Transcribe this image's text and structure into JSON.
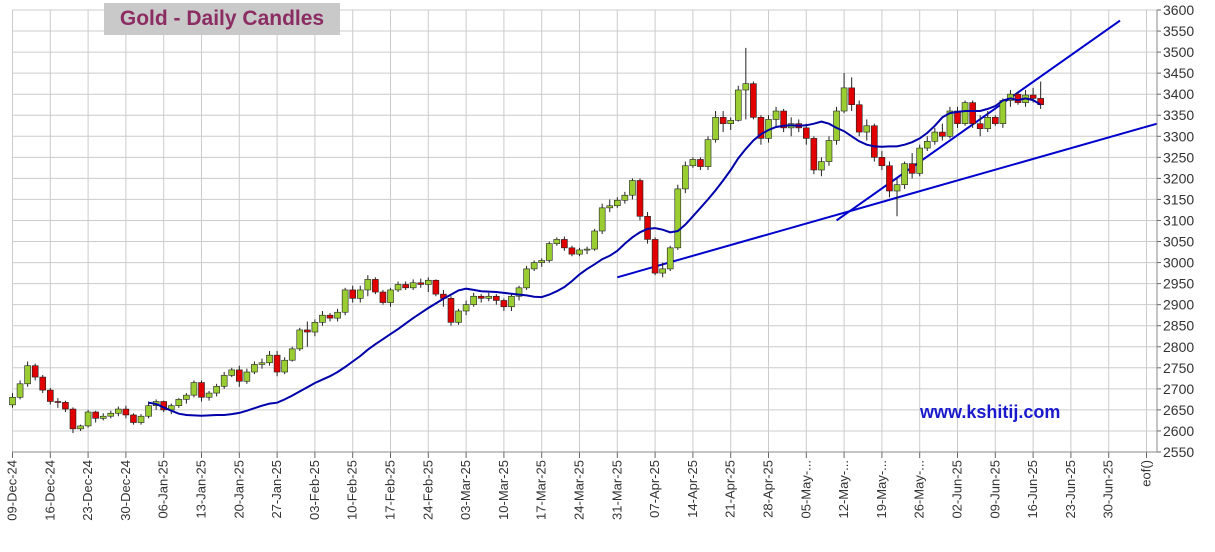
{
  "chart_data": {
    "type": "candlestick",
    "title": "Gold - Daily Candles",
    "watermark": "www.kshitij.com",
    "y_axis": {
      "position": "right",
      "range": [
        2550,
        3600
      ],
      "ticks": [
        2550,
        2600,
        2650,
        2700,
        2750,
        2800,
        2850,
        2900,
        2950,
        3000,
        3050,
        3100,
        3150,
        3200,
        3250,
        3300,
        3350,
        3400,
        3450,
        3500,
        3550,
        3600
      ]
    },
    "x_axis": {
      "tick_labels": [
        "09-Dec-24",
        "16-Dec-24",
        "23-Dec-24",
        "30-Dec-24",
        "06-Jan-25",
        "13-Jan-25",
        "20-Jan-25",
        "27-Jan-25",
        "03-Feb-25",
        "10-Feb-25",
        "17-Feb-25",
        "24-Feb-25",
        "03-Mar-25",
        "10-Mar-25",
        "17-Mar-25",
        "24-Mar-25",
        "31-Mar-25",
        "07-Apr-25",
        "14-Apr-25",
        "21-Apr-25",
        "28-Apr-25",
        "05-May-...",
        "12-May-...",
        "19-May-...",
        "26-May-...",
        "02-Jun-25",
        "09-Jun-25",
        "16-Jun-25",
        "23-Jun-25",
        "30-Jun-25",
        "eof()"
      ]
    },
    "colors": {
      "up_candle": "#9acd32",
      "down_candle": "#e00000",
      "moving_average": "#0000aa",
      "trendline": "#0000cc",
      "grid": "#cccccc"
    },
    "grid": true,
    "series": [
      {
        "type": "candlestick",
        "days_per_week": 5,
        "candles": [
          [
            2662,
            2690,
            2655,
            2680
          ],
          [
            2680,
            2720,
            2675,
            2712
          ],
          [
            2712,
            2765,
            2705,
            2755
          ],
          [
            2755,
            2760,
            2720,
            2728
          ],
          [
            2728,
            2733,
            2690,
            2697
          ],
          [
            2697,
            2702,
            2663,
            2670
          ],
          [
            2670,
            2678,
            2655,
            2668
          ],
          [
            2668,
            2672,
            2645,
            2652
          ],
          [
            2652,
            2656,
            2595,
            2605
          ],
          [
            2605,
            2615,
            2600,
            2612
          ],
          [
            2612,
            2650,
            2608,
            2645
          ],
          [
            2645,
            2648,
            2620,
            2630
          ],
          [
            2630,
            2642,
            2625,
            2635
          ],
          [
            2635,
            2648,
            2630,
            2642
          ],
          [
            2642,
            2658,
            2635,
            2652
          ],
          [
            2652,
            2660,
            2630,
            2638
          ],
          [
            2638,
            2642,
            2615,
            2620
          ],
          [
            2620,
            2640,
            2615,
            2635
          ],
          [
            2635,
            2670,
            2630,
            2660
          ],
          [
            2660,
            2675,
            2650,
            2670
          ],
          [
            2670,
            2672,
            2645,
            2650
          ],
          [
            2650,
            2665,
            2640,
            2660
          ],
          [
            2660,
            2678,
            2655,
            2675
          ],
          [
            2675,
            2690,
            2665,
            2685
          ],
          [
            2685,
            2720,
            2680,
            2715
          ],
          [
            2715,
            2720,
            2670,
            2680
          ],
          [
            2680,
            2695,
            2672,
            2690
          ],
          [
            2690,
            2712,
            2682,
            2706
          ],
          [
            2706,
            2740,
            2700,
            2732
          ],
          [
            2732,
            2750,
            2728,
            2745
          ],
          [
            2745,
            2755,
            2705,
            2718
          ],
          [
            2718,
            2748,
            2712,
            2740
          ],
          [
            2740,
            2765,
            2735,
            2758
          ],
          [
            2758,
            2772,
            2748,
            2762
          ],
          [
            2762,
            2790,
            2755,
            2780
          ],
          [
            2780,
            2790,
            2730,
            2740
          ],
          [
            2740,
            2775,
            2735,
            2768
          ],
          [
            2768,
            2800,
            2765,
            2795
          ],
          [
            2795,
            2845,
            2790,
            2840
          ],
          [
            2840,
            2860,
            2800,
            2835
          ],
          [
            2835,
            2865,
            2825,
            2858
          ],
          [
            2858,
            2885,
            2850,
            2875
          ],
          [
            2875,
            2880,
            2860,
            2868
          ],
          [
            2868,
            2890,
            2860,
            2882
          ],
          [
            2882,
            2940,
            2875,
            2935
          ],
          [
            2935,
            2945,
            2905,
            2915
          ],
          [
            2915,
            2945,
            2905,
            2935
          ],
          [
            2935,
            2970,
            2920,
            2960
          ],
          [
            2960,
            2965,
            2925,
            2930
          ],
          [
            2930,
            2935,
            2900,
            2905
          ],
          [
            2905,
            2940,
            2895,
            2935
          ],
          [
            2935,
            2955,
            2930,
            2948
          ],
          [
            2948,
            2955,
            2935,
            2940
          ],
          [
            2940,
            2960,
            2935,
            2952
          ],
          [
            2952,
            2962,
            2940,
            2948
          ],
          [
            2948,
            2965,
            2930,
            2958
          ],
          [
            2958,
            2960,
            2920,
            2925
          ],
          [
            2925,
            2935,
            2895,
            2915
          ],
          [
            2915,
            2920,
            2850,
            2858
          ],
          [
            2858,
            2890,
            2852,
            2885
          ],
          [
            2885,
            2910,
            2875,
            2900
          ],
          [
            2900,
            2928,
            2895,
            2920
          ],
          [
            2920,
            2925,
            2905,
            2915
          ],
          [
            2915,
            2928,
            2908,
            2920
          ],
          [
            2920,
            2925,
            2900,
            2910
          ],
          [
            2910,
            2915,
            2885,
            2895
          ],
          [
            2895,
            2925,
            2885,
            2920
          ],
          [
            2920,
            2945,
            2910,
            2940
          ],
          [
            2940,
            2992,
            2935,
            2985
          ],
          [
            2985,
            3005,
            2980,
            3000
          ],
          [
            3000,
            3010,
            2990,
            3005
          ],
          [
            3005,
            3050,
            3000,
            3045
          ],
          [
            3045,
            3060,
            3040,
            3055
          ],
          [
            3055,
            3062,
            3028,
            3035
          ],
          [
            3035,
            3040,
            3015,
            3020
          ],
          [
            3020,
            3035,
            3015,
            3030
          ],
          [
            3030,
            3038,
            3020,
            3032
          ],
          [
            3032,
            3080,
            3028,
            3075
          ],
          [
            3075,
            3140,
            3068,
            3130
          ],
          [
            3130,
            3150,
            3120,
            3135
          ],
          [
            3135,
            3155,
            3130,
            3148
          ],
          [
            3148,
            3168,
            3140,
            3160
          ],
          [
            3160,
            3200,
            3150,
            3195
          ],
          [
            3195,
            3200,
            3100,
            3110
          ],
          [
            3110,
            3120,
            3045,
            3055
          ],
          [
            3055,
            3060,
            2970,
            2975
          ],
          [
            2975,
            3000,
            2965,
            2985
          ],
          [
            2985,
            3040,
            2980,
            3035
          ],
          [
            3035,
            3185,
            3030,
            3175
          ],
          [
            3175,
            3240,
            3165,
            3230
          ],
          [
            3230,
            3250,
            3225,
            3245
          ],
          [
            3245,
            3250,
            3220,
            3228
          ],
          [
            3228,
            3300,
            3220,
            3292
          ],
          [
            3292,
            3360,
            3285,
            3345
          ],
          [
            3345,
            3360,
            3310,
            3330
          ],
          [
            3330,
            3345,
            3315,
            3338
          ],
          [
            3338,
            3420,
            3335,
            3410
          ],
          [
            3410,
            3510,
            3340,
            3425
          ],
          [
            3425,
            3430,
            3340,
            3345
          ],
          [
            3345,
            3350,
            3280,
            3295
          ],
          [
            3295,
            3350,
            3285,
            3340
          ],
          [
            3340,
            3370,
            3320,
            3360
          ],
          [
            3360,
            3365,
            3310,
            3320
          ],
          [
            3320,
            3345,
            3300,
            3330
          ],
          [
            3330,
            3340,
            3310,
            3320
          ],
          [
            3320,
            3330,
            3280,
            3295
          ],
          [
            3295,
            3300,
            3210,
            3220
          ],
          [
            3220,
            3250,
            3205,
            3240
          ],
          [
            3240,
            3300,
            3230,
            3290
          ],
          [
            3290,
            3370,
            3280,
            3360
          ],
          [
            3360,
            3450,
            3355,
            3415
          ],
          [
            3415,
            3440,
            3360,
            3375
          ],
          [
            3375,
            3385,
            3300,
            3310
          ],
          [
            3310,
            3340,
            3290,
            3325
          ],
          [
            3325,
            3330,
            3240,
            3250
          ],
          [
            3250,
            3265,
            3220,
            3230
          ],
          [
            3230,
            3240,
            3155,
            3170
          ],
          [
            3170,
            3200,
            3110,
            3185
          ],
          [
            3185,
            3240,
            3175,
            3235
          ],
          [
            3235,
            3260,
            3200,
            3212
          ],
          [
            3212,
            3280,
            3205,
            3272
          ],
          [
            3272,
            3300,
            3265,
            3288
          ],
          [
            3288,
            3320,
            3280,
            3310
          ],
          [
            3310,
            3330,
            3290,
            3300
          ],
          [
            3300,
            3370,
            3295,
            3360
          ],
          [
            3360,
            3370,
            3320,
            3330
          ],
          [
            3330,
            3385,
            3325,
            3380
          ],
          [
            3380,
            3385,
            3320,
            3330
          ],
          [
            3330,
            3350,
            3300,
            3318
          ],
          [
            3318,
            3360,
            3310,
            3345
          ],
          [
            3345,
            3350,
            3325,
            3330
          ],
          [
            3330,
            3390,
            3320,
            3385
          ],
          [
            3385,
            3410,
            3370,
            3400
          ],
          [
            3400,
            3405,
            3375,
            3380
          ],
          [
            3380,
            3410,
            3370,
            3398
          ],
          [
            3398,
            3415,
            3380,
            3390
          ],
          [
            3390,
            3430,
            3365,
            3375
          ]
        ]
      },
      {
        "name": "",
        "type": "line",
        "role": "moving_average",
        "values": [
          2667,
          2664,
          2656,
          2648,
          2641,
          2638,
          2637,
          2636,
          2637,
          2638,
          2638,
          2640,
          2643,
          2648,
          2654,
          2660,
          2665,
          2667,
          2675,
          2684,
          2694,
          2704,
          2714,
          2722,
          2730,
          2740,
          2752,
          2765,
          2778,
          2793,
          2806,
          2818,
          2830,
          2842,
          2855,
          2868,
          2880,
          2892,
          2903,
          2914,
          2924,
          2934,
          2938,
          2935,
          2932,
          2931,
          2930,
          2928,
          2926,
          2924,
          2922,
          2919,
          2918,
          2924,
          2932,
          2942,
          2956,
          2972,
          2985,
          2996,
          3008,
          3016,
          3028,
          3045,
          3060,
          3072,
          3080,
          3082,
          3078,
          3072,
          3075,
          3090,
          3110,
          3130,
          3150,
          3172,
          3195,
          3220,
          3248,
          3270,
          3290,
          3305,
          3315,
          3322,
          3325,
          3326,
          3325,
          3326,
          3330,
          3335,
          3330,
          3320,
          3312,
          3300,
          3288,
          3280,
          3276,
          3275,
          3276,
          3276,
          3280,
          3286,
          3295,
          3308,
          3325,
          3345,
          3355,
          3358,
          3360,
          3360,
          3360,
          3365,
          3372,
          3385,
          3390,
          3386,
          3390,
          3386,
          3375
        ]
      }
    ],
    "trendlines": [
      {
        "from": [
          2950,
          2965
        ],
        "to": [
          3170,
          3330
        ]
      },
      {
        "from": [
          3100,
          3100
        ],
        "to": [
          3175,
          3575
        ]
      }
    ]
  }
}
